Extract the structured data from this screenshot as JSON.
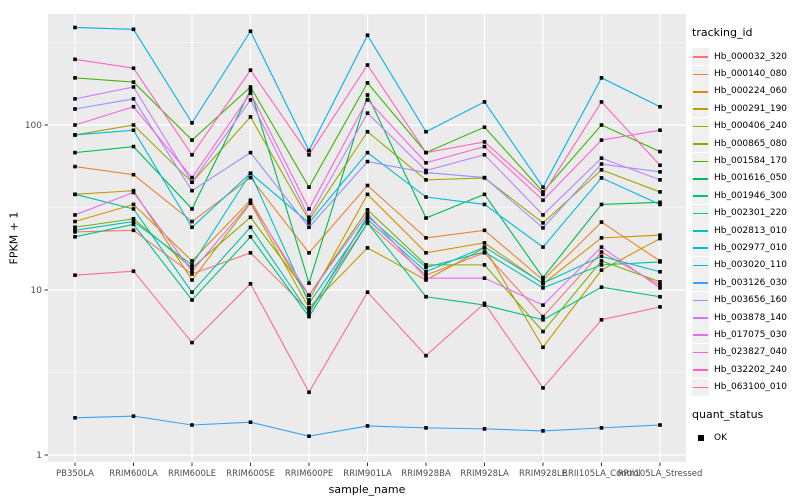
{
  "chart_data": {
    "type": "line",
    "title": "",
    "xlabel": "sample_name",
    "ylabel": "FPKM + 1",
    "y_scale": "log10",
    "y_ticks": [
      1,
      10,
      100
    ],
    "y_minor": [
      3.162,
      31.62,
      316.2
    ],
    "ylim": [
      0.9,
      470
    ],
    "grid": "on",
    "legend_position": "right",
    "legend_title": "tracking_id",
    "point_legend_title": "quant_status",
    "point_legend_label": "OK",
    "point_color": "#000000",
    "panel_color": "#EBEBEB",
    "categories": [
      "PB350LA",
      "RRIM600LA",
      "RRIM600LE",
      "RRIM600SE",
      "RRIM600PE",
      "RRIM901LA",
      "RRIM928BA",
      "RRIM928LA",
      "RRIM928LE",
      "RRII105LA_Control",
      "RRII105LA_Stressed"
    ],
    "series": [
      {
        "name": "Hb_000032_320",
        "color": "#F8766D",
        "values": [
          22.5,
          23,
          12.5,
          16.8,
          7.5,
          25.5,
          12.3,
          16.8,
          6.9,
          17,
          10.7
        ]
      },
      {
        "name": "Hb_000140_080",
        "color": "#EA8331",
        "values": [
          56,
          50,
          26,
          48,
          16.8,
          43,
          20.7,
          23,
          11.5,
          25.8,
          15
        ]
      },
      {
        "name": "Hb_000224_060",
        "color": "#D89000",
        "values": [
          26,
          33,
          15,
          35,
          8.7,
          38,
          16.8,
          19.3,
          10.9,
          20.7,
          21.5
        ]
      },
      {
        "name": "Hb_000291_190",
        "color": "#C09B00",
        "values": [
          38,
          40,
          11.5,
          33.6,
          7.8,
          18,
          11.5,
          18,
          4.5,
          13.2,
          20.5
        ]
      },
      {
        "name": "Hb_000406_240",
        "color": "#A3A500",
        "values": [
          87,
          100,
          45,
          112,
          26.5,
          91,
          46.5,
          47.8,
          25.5,
          53.5,
          39.3
        ]
      },
      {
        "name": "Hb_000865_080",
        "color": "#7CAE00",
        "values": [
          24,
          27,
          13.6,
          27.6,
          9.3,
          30.6,
          14.2,
          14.2,
          5.6,
          15,
          11.2
        ]
      },
      {
        "name": "Hb_001584_170",
        "color": "#39B600",
        "values": [
          193,
          182,
          81,
          170,
          42,
          180,
          68,
          97,
          39.3,
          100,
          69
        ]
      },
      {
        "name": "Hb_001616_050",
        "color": "#00BB4E",
        "values": [
          68,
          74,
          31,
          163,
          11,
          152,
          27.3,
          38,
          11.9,
          33,
          34
        ]
      },
      {
        "name": "Hb_001946_300",
        "color": "#00C087",
        "values": [
          21,
          25,
          8.7,
          21,
          6.9,
          25.5,
          9.1,
          8.1,
          6.6,
          10.4,
          9.1
        ]
      },
      {
        "name": "Hb_002301_220",
        "color": "#00C1A3",
        "values": [
          38,
          31,
          9.7,
          24,
          7.25,
          28,
          13.7,
          17,
          10.3,
          14.2,
          14.8
        ]
      },
      {
        "name": "Hb_002813_010",
        "color": "#00BFC4",
        "values": [
          23,
          26,
          14.2,
          51,
          8.3,
          26.8,
          12.9,
          18.2,
          11,
          16,
          12.9
        ]
      },
      {
        "name": "Hb_002977_010",
        "color": "#00BAE0",
        "values": [
          87,
          93,
          24,
          51,
          25.5,
          68,
          36.6,
          33,
          18.2,
          47.8,
          33
        ]
      },
      {
        "name": "Hb_003020_110",
        "color": "#00B0F6",
        "values": [
          390,
          380,
          103,
          370,
          70,
          350,
          91,
          138,
          42,
          193,
          129
        ]
      },
      {
        "name": "Hb_003126_030",
        "color": "#35A2FF",
        "values": [
          1.68,
          1.72,
          1.52,
          1.58,
          1.3,
          1.5,
          1.46,
          1.44,
          1.4,
          1.46,
          1.52
        ]
      },
      {
        "name": "Hb_003656_160",
        "color": "#9590FF",
        "values": [
          125,
          144,
          40,
          68,
          24,
          60,
          51.5,
          48,
          23.8,
          58,
          52
        ]
      },
      {
        "name": "Hb_003878_140",
        "color": "#C77CFF",
        "values": [
          144,
          170,
          45,
          142,
          27.6,
          118,
          53,
          66,
          28.5,
          63,
          46.5
        ]
      },
      {
        "name": "Hb_017075_030",
        "color": "#E76BF3",
        "values": [
          28.5,
          39,
          13,
          34,
          9.3,
          29,
          11.8,
          11.8,
          8.1,
          18.2,
          10.3
        ]
      },
      {
        "name": "Hb_023827_040",
        "color": "#FA62DB",
        "values": [
          100,
          129,
          48,
          156,
          31,
          142,
          59,
          74,
          35,
          81,
          93
        ]
      },
      {
        "name": "Hb_032202_240",
        "color": "#FF62BC",
        "values": [
          250,
          221,
          66,
          215,
          66,
          231,
          68,
          79,
          38,
          138,
          57
        ]
      },
      {
        "name": "Hb_063100_010",
        "color": "#FF6A98",
        "values": [
          12.3,
          13,
          4.8,
          10.9,
          2.4,
          9.7,
          4.0,
          8.3,
          2.55,
          6.6,
          7.9
        ]
      }
    ]
  }
}
